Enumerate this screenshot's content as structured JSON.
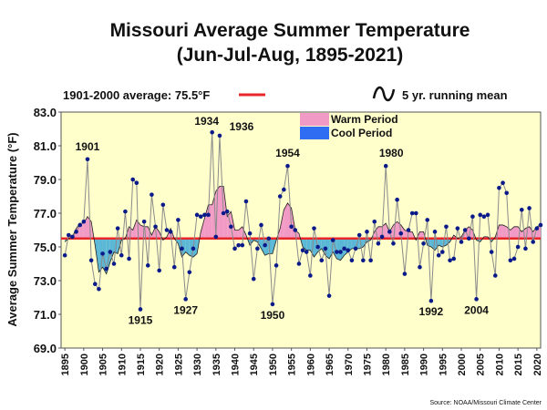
{
  "chart_data": {
    "type": "line",
    "title_line1": "Missouri Average Summer Temperature",
    "title_line2": "(Jun-Jul-Aug, 1895-2021)",
    "ylabel": "Average Summer Temperature (°F)",
    "xlabel": "",
    "ylim": [
      69.0,
      83.0
    ],
    "xlim": [
      1894,
      2021
    ],
    "yticks": [
      "69.0",
      "71.0",
      "73.0",
      "75.0",
      "77.0",
      "79.0",
      "81.0",
      "83.0"
    ],
    "xticks": [
      "1895",
      "1900",
      "1905",
      "1910",
      "1915",
      "1920",
      "1925",
      "1930",
      "1935",
      "1940",
      "1945",
      "1950",
      "1955",
      "1960",
      "1965",
      "1970",
      "1975",
      "1980",
      "1985",
      "1990",
      "1995",
      "2000",
      "2005",
      "2010",
      "2015",
      "2020"
    ],
    "average": {
      "label": "1901-2000 average: 75.5°F",
      "value": 75.5,
      "color": "#e8262a"
    },
    "running_mean_label": "5 yr. running mean",
    "legend": [
      {
        "label": "Warm Period",
        "color": "#f29ac6"
      },
      {
        "label": "Cool Period",
        "color": "#2f6df2"
      }
    ],
    "colors": {
      "plot_bg": "#ffffcc",
      "series_line": "#8a8a8a",
      "marker": "#0a1a8a",
      "warm_fill": "#f29ac6",
      "cool_fill": "#5bb7d6"
    },
    "x": [
      1895,
      1896,
      1897,
      1898,
      1899,
      1900,
      1901,
      1902,
      1903,
      1904,
      1905,
      1906,
      1907,
      1908,
      1909,
      1910,
      1911,
      1912,
      1913,
      1914,
      1915,
      1916,
      1917,
      1918,
      1919,
      1920,
      1921,
      1922,
      1923,
      1924,
      1925,
      1926,
      1927,
      1928,
      1929,
      1930,
      1931,
      1932,
      1933,
      1934,
      1935,
      1936,
      1937,
      1938,
      1939,
      1940,
      1941,
      1942,
      1943,
      1944,
      1945,
      1946,
      1947,
      1948,
      1949,
      1950,
      1951,
      1952,
      1953,
      1954,
      1955,
      1956,
      1957,
      1958,
      1959,
      1960,
      1961,
      1962,
      1963,
      1964,
      1965,
      1966,
      1967,
      1968,
      1969,
      1970,
      1971,
      1972,
      1973,
      1974,
      1975,
      1976,
      1977,
      1978,
      1979,
      1980,
      1981,
      1982,
      1983,
      1984,
      1985,
      1986,
      1987,
      1988,
      1989,
      1990,
      1991,
      1992,
      1993,
      1994,
      1995,
      1996,
      1997,
      1998,
      1999,
      2000,
      2001,
      2002,
      2003,
      2004,
      2005,
      2006,
      2007,
      2008,
      2009,
      2010,
      2011,
      2012,
      2013,
      2014,
      2015,
      2016,
      2017,
      2018,
      2019,
      2020,
      2021
    ],
    "temperature": [
      74.5,
      75.7,
      75.6,
      75.9,
      76.3,
      76.5,
      80.2,
      74.2,
      72.8,
      72.5,
      74.6,
      73.7,
      74.7,
      74.0,
      76.1,
      74.5,
      77.1,
      74.3,
      79.0,
      78.8,
      71.3,
      76.5,
      73.9,
      78.1,
      76.2,
      73.6,
      77.5,
      76.0,
      75.9,
      73.8,
      76.6,
      74.9,
      71.9,
      73.5,
      74.9,
      76.9,
      76.8,
      76.9,
      76.9,
      81.8,
      75.6,
      81.6,
      77.0,
      77.1,
      76.2,
      74.9,
      75.1,
      75.1,
      77.7,
      75.8,
      73.1,
      74.9,
      76.3,
      75.1,
      75.5,
      71.6,
      73.9,
      78.0,
      78.4,
      79.8,
      76.2,
      76.0,
      74.0,
      74.8,
      74.7,
      73.3,
      76.1,
      75.0,
      74.2,
      74.9,
      72.1,
      75.4,
      74.7,
      74.7,
      74.9,
      74.8,
      74.2,
      74.9,
      75.7,
      74.2,
      75.9,
      74.2,
      76.5,
      75.2,
      75.6,
      79.8,
      75.9,
      75.2,
      77.8,
      75.8,
      73.4,
      76.0,
      77.0,
      77.0,
      73.8,
      75.2,
      76.6,
      71.8,
      75.9,
      74.5,
      74.7,
      76.2,
      74.2,
      74.3,
      76.1,
      75.3,
      76.0,
      75.5,
      76.8,
      71.9,
      76.9,
      76.8,
      76.9,
      74.7,
      73.3,
      78.5,
      78.8,
      78.2,
      74.2,
      74.3,
      75.0,
      77.2,
      74.9,
      77.3,
      75.3,
      76.1,
      76.3
    ],
    "running_mean": [
      75.3,
      75.5,
      75.6,
      76.1,
      76.4,
      76.4,
      76.8,
      76.5,
      75.1,
      73.5,
      73.8,
      73.4,
      74.1,
      74.7,
      74.6,
      75.4,
      75.5,
      76.2,
      76.0,
      76.6,
      76.3,
      76.2,
      76.2,
      75.7,
      76.2,
      75.9,
      75.4,
      75.6,
      76.1,
      75.5,
      75.2,
      74.4,
      74.7,
      74.5,
      74.4,
      74.6,
      75.9,
      76.7,
      77.5,
      77.5,
      78.3,
      78.6,
      78.6,
      76.8,
      77.1,
      76.0,
      76.0,
      76.2,
      75.7,
      75.1,
      75.4,
      75.3,
      74.9,
      74.5,
      74.6,
      74.6,
      75.4,
      76.1,
      77.2,
      77.6,
      77.3,
      76.0,
      75.8,
      75.0,
      74.8,
      74.8,
      74.4,
      74.7,
      74.9,
      74.5,
      74.3,
      74.7,
      74.3,
      74.2,
      74.5,
      74.7,
      74.9,
      74.9,
      74.9,
      75.0,
      75.3,
      75.4,
      75.9,
      76.2,
      76.2,
      76.4,
      75.9,
      76.3,
      76.5,
      76.3,
      76.0,
      75.9,
      75.9,
      75.4,
      75.9,
      75.9,
      75.1,
      75.0,
      74.8,
      75.1,
      75.0,
      75.1,
      75.3,
      75.7,
      75.5,
      75.6,
      76.0,
      76.2,
      76.0,
      75.4,
      75.3,
      75.6,
      75.6,
      75.3,
      75.6,
      76.3,
      76.3,
      76.2,
      76.0,
      76.2,
      76.2,
      75.9,
      76.1,
      76.2,
      75.9,
      76.2,
      76.3
    ]
  },
  "annotations": [
    {
      "label": "1901",
      "year": 1901,
      "value": 80.2,
      "dy": -10
    },
    {
      "label": "1915",
      "year": 1915,
      "value": 71.3,
      "dy": 16
    },
    {
      "label": "1927",
      "year": 1927,
      "value": 71.9,
      "dy": 16
    },
    {
      "label": "1934",
      "year": 1934,
      "value": 81.8,
      "dy": -8,
      "dx": -6
    },
    {
      "label": "1936",
      "year": 1936,
      "value": 81.6,
      "dy": -6,
      "dx": 24
    },
    {
      "label": "1950",
      "year": 1950,
      "value": 71.6,
      "dy": 16
    },
    {
      "label": "1954",
      "year": 1954,
      "value": 79.8,
      "dy": -10
    },
    {
      "label": "1980",
      "year": 1980,
      "value": 79.8,
      "dy": -10,
      "dx": 6
    },
    {
      "label": "1992",
      "year": 1992,
      "value": 71.8,
      "dy": 16
    },
    {
      "label": "2004",
      "year": 2004,
      "value": 71.9,
      "dy": 16
    }
  ],
  "source": "Source: NOAA/Missouri Climate Center"
}
